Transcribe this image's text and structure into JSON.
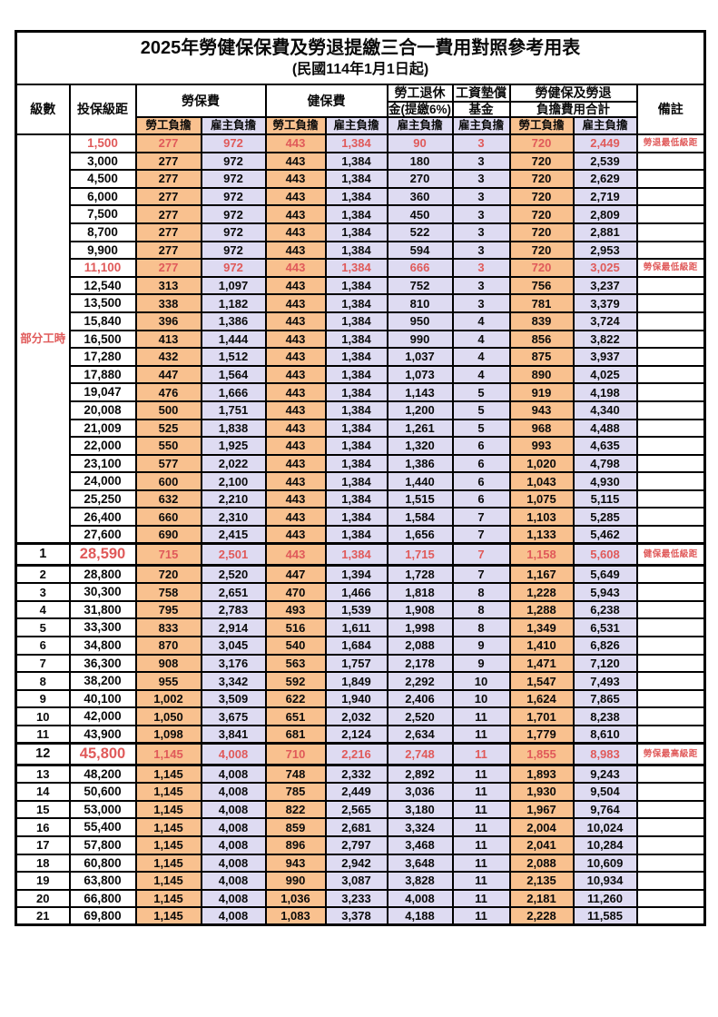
{
  "page": {
    "title": "2025年勞健保保費及勞退提繳三合一費用對照參考用表",
    "subtitle": "(民國114年1月1日起)"
  },
  "header": {
    "level": "級數",
    "bracket": "投保級距",
    "labor_insurance": "勞保費",
    "health_insurance": "健保費",
    "pension_line1": "勞工退休",
    "pension_line2": "金(提繳6%)",
    "wage_fund_line1": "工資墊償",
    "wage_fund_line2": "基金",
    "total_line1": "勞健保及勞退",
    "total_line2": "負擔費用合計",
    "remarks": "備註",
    "employee_burden": "勞工負擔",
    "employer_burden": "雇主負擔"
  },
  "part_time_label": "部分工時",
  "colors": {
    "employee_bg": "#F9C18F",
    "employer_bg": "#DEDBF2",
    "highlight_red": "#E05A5A"
  },
  "rows": [
    {
      "group": "part_time",
      "level": "",
      "bracket": "1,500",
      "li_emp": "277",
      "li_er": "972",
      "hi_emp": "443",
      "hi_er": "1,384",
      "pension": "90",
      "fund": "3",
      "tot_emp": "720",
      "tot_er": "2,449",
      "note": "勞退最低級距",
      "red": true
    },
    {
      "group": "part_time",
      "level": "",
      "bracket": "3,000",
      "li_emp": "277",
      "li_er": "972",
      "hi_emp": "443",
      "hi_er": "1,384",
      "pension": "180",
      "fund": "3",
      "tot_emp": "720",
      "tot_er": "2,539"
    },
    {
      "group": "part_time",
      "level": "",
      "bracket": "4,500",
      "li_emp": "277",
      "li_er": "972",
      "hi_emp": "443",
      "hi_er": "1,384",
      "pension": "270",
      "fund": "3",
      "tot_emp": "720",
      "tot_er": "2,629"
    },
    {
      "group": "part_time",
      "level": "",
      "bracket": "6,000",
      "li_emp": "277",
      "li_er": "972",
      "hi_emp": "443",
      "hi_er": "1,384",
      "pension": "360",
      "fund": "3",
      "tot_emp": "720",
      "tot_er": "2,719"
    },
    {
      "group": "part_time",
      "level": "",
      "bracket": "7,500",
      "li_emp": "277",
      "li_er": "972",
      "hi_emp": "443",
      "hi_er": "1,384",
      "pension": "450",
      "fund": "3",
      "tot_emp": "720",
      "tot_er": "2,809"
    },
    {
      "group": "part_time",
      "level": "",
      "bracket": "8,700",
      "li_emp": "277",
      "li_er": "972",
      "hi_emp": "443",
      "hi_er": "1,384",
      "pension": "522",
      "fund": "3",
      "tot_emp": "720",
      "tot_er": "2,881"
    },
    {
      "group": "part_time",
      "level": "",
      "bracket": "9,900",
      "li_emp": "277",
      "li_er": "972",
      "hi_emp": "443",
      "hi_er": "1,384",
      "pension": "594",
      "fund": "3",
      "tot_emp": "720",
      "tot_er": "2,953"
    },
    {
      "group": "part_time",
      "level": "",
      "bracket": "11,100",
      "li_emp": "277",
      "li_er": "972",
      "hi_emp": "443",
      "hi_er": "1,384",
      "pension": "666",
      "fund": "3",
      "tot_emp": "720",
      "tot_er": "3,025",
      "note": "勞保最低級距",
      "red": true
    },
    {
      "group": "part_time",
      "level": "",
      "bracket": "12,540",
      "li_emp": "313",
      "li_er": "1,097",
      "hi_emp": "443",
      "hi_er": "1,384",
      "pension": "752",
      "fund": "3",
      "tot_emp": "756",
      "tot_er": "3,237"
    },
    {
      "group": "part_time",
      "level": "",
      "bracket": "13,500",
      "li_emp": "338",
      "li_er": "1,182",
      "hi_emp": "443",
      "hi_er": "1,384",
      "pension": "810",
      "fund": "3",
      "tot_emp": "781",
      "tot_er": "3,379"
    },
    {
      "group": "part_time",
      "level": "",
      "bracket": "15,840",
      "li_emp": "396",
      "li_er": "1,386",
      "hi_emp": "443",
      "hi_er": "1,384",
      "pension": "950",
      "fund": "4",
      "tot_emp": "839",
      "tot_er": "3,724"
    },
    {
      "group": "part_time",
      "level": "",
      "bracket": "16,500",
      "li_emp": "413",
      "li_er": "1,444",
      "hi_emp": "443",
      "hi_er": "1,384",
      "pension": "990",
      "fund": "4",
      "tot_emp": "856",
      "tot_er": "3,822"
    },
    {
      "group": "part_time",
      "level": "",
      "bracket": "17,280",
      "li_emp": "432",
      "li_er": "1,512",
      "hi_emp": "443",
      "hi_er": "1,384",
      "pension": "1,037",
      "fund": "4",
      "tot_emp": "875",
      "tot_er": "3,937"
    },
    {
      "group": "part_time",
      "level": "",
      "bracket": "17,880",
      "li_emp": "447",
      "li_er": "1,564",
      "hi_emp": "443",
      "hi_er": "1,384",
      "pension": "1,073",
      "fund": "4",
      "tot_emp": "890",
      "tot_er": "4,025"
    },
    {
      "group": "part_time",
      "level": "",
      "bracket": "19,047",
      "li_emp": "476",
      "li_er": "1,666",
      "hi_emp": "443",
      "hi_er": "1,384",
      "pension": "1,143",
      "fund": "5",
      "tot_emp": "919",
      "tot_er": "4,198"
    },
    {
      "group": "part_time",
      "level": "",
      "bracket": "20,008",
      "li_emp": "500",
      "li_er": "1,751",
      "hi_emp": "443",
      "hi_er": "1,384",
      "pension": "1,200",
      "fund": "5",
      "tot_emp": "943",
      "tot_er": "4,340"
    },
    {
      "group": "part_time",
      "level": "",
      "bracket": "21,009",
      "li_emp": "525",
      "li_er": "1,838",
      "hi_emp": "443",
      "hi_er": "1,384",
      "pension": "1,261",
      "fund": "5",
      "tot_emp": "968",
      "tot_er": "4,488"
    },
    {
      "group": "part_time",
      "level": "",
      "bracket": "22,000",
      "li_emp": "550",
      "li_er": "1,925",
      "hi_emp": "443",
      "hi_er": "1,384",
      "pension": "1,320",
      "fund": "6",
      "tot_emp": "993",
      "tot_er": "4,635"
    },
    {
      "group": "part_time",
      "level": "",
      "bracket": "23,100",
      "li_emp": "577",
      "li_er": "2,022",
      "hi_emp": "443",
      "hi_er": "1,384",
      "pension": "1,386",
      "fund": "6",
      "tot_emp": "1,020",
      "tot_er": "4,798"
    },
    {
      "group": "part_time",
      "level": "",
      "bracket": "24,000",
      "li_emp": "600",
      "li_er": "2,100",
      "hi_emp": "443",
      "hi_er": "1,384",
      "pension": "1,440",
      "fund": "6",
      "tot_emp": "1,043",
      "tot_er": "4,930"
    },
    {
      "group": "part_time",
      "level": "",
      "bracket": "25,250",
      "li_emp": "632",
      "li_er": "2,210",
      "hi_emp": "443",
      "hi_er": "1,384",
      "pension": "1,515",
      "fund": "6",
      "tot_emp": "1,075",
      "tot_er": "5,115"
    },
    {
      "group": "part_time",
      "level": "",
      "bracket": "26,400",
      "li_emp": "660",
      "li_er": "2,310",
      "hi_emp": "443",
      "hi_er": "1,384",
      "pension": "1,584",
      "fund": "7",
      "tot_emp": "1,103",
      "tot_er": "5,285"
    },
    {
      "group": "part_time",
      "level": "",
      "bracket": "27,600",
      "li_emp": "690",
      "li_er": "2,415",
      "hi_emp": "443",
      "hi_er": "1,384",
      "pension": "1,656",
      "fund": "7",
      "tot_emp": "1,133",
      "tot_er": "5,462"
    },
    {
      "group": "level",
      "level": "1",
      "bracket": "28,590",
      "li_emp": "715",
      "li_er": "2,501",
      "hi_emp": "443",
      "hi_er": "1,384",
      "pension": "1,715",
      "fund": "7",
      "tot_emp": "1,158",
      "tot_er": "5,608",
      "note": "健保最低級距",
      "red": true,
      "big": true
    },
    {
      "group": "level",
      "level": "2",
      "bracket": "28,800",
      "li_emp": "720",
      "li_er": "2,520",
      "hi_emp": "447",
      "hi_er": "1,394",
      "pension": "1,728",
      "fund": "7",
      "tot_emp": "1,167",
      "tot_er": "5,649"
    },
    {
      "group": "level",
      "level": "3",
      "bracket": "30,300",
      "li_emp": "758",
      "li_er": "2,651",
      "hi_emp": "470",
      "hi_er": "1,466",
      "pension": "1,818",
      "fund": "8",
      "tot_emp": "1,228",
      "tot_er": "5,943"
    },
    {
      "group": "level",
      "level": "4",
      "bracket": "31,800",
      "li_emp": "795",
      "li_er": "2,783",
      "hi_emp": "493",
      "hi_er": "1,539",
      "pension": "1,908",
      "fund": "8",
      "tot_emp": "1,288",
      "tot_er": "6,238"
    },
    {
      "group": "level",
      "level": "5",
      "bracket": "33,300",
      "li_emp": "833",
      "li_er": "2,914",
      "hi_emp": "516",
      "hi_er": "1,611",
      "pension": "1,998",
      "fund": "8",
      "tot_emp": "1,349",
      "tot_er": "6,531"
    },
    {
      "group": "level",
      "level": "6",
      "bracket": "34,800",
      "li_emp": "870",
      "li_er": "3,045",
      "hi_emp": "540",
      "hi_er": "1,684",
      "pension": "2,088",
      "fund": "9",
      "tot_emp": "1,410",
      "tot_er": "6,826"
    },
    {
      "group": "level",
      "level": "7",
      "bracket": "36,300",
      "li_emp": "908",
      "li_er": "3,176",
      "hi_emp": "563",
      "hi_er": "1,757",
      "pension": "2,178",
      "fund": "9",
      "tot_emp": "1,471",
      "tot_er": "7,120"
    },
    {
      "group": "level",
      "level": "8",
      "bracket": "38,200",
      "li_emp": "955",
      "li_er": "3,342",
      "hi_emp": "592",
      "hi_er": "1,849",
      "pension": "2,292",
      "fund": "10",
      "tot_emp": "1,547",
      "tot_er": "7,493"
    },
    {
      "group": "level",
      "level": "9",
      "bracket": "40,100",
      "li_emp": "1,002",
      "li_er": "3,509",
      "hi_emp": "622",
      "hi_er": "1,940",
      "pension": "2,406",
      "fund": "10",
      "tot_emp": "1,624",
      "tot_er": "7,865"
    },
    {
      "group": "level",
      "level": "10",
      "bracket": "42,000",
      "li_emp": "1,050",
      "li_er": "3,675",
      "hi_emp": "651",
      "hi_er": "2,032",
      "pension": "2,520",
      "fund": "11",
      "tot_emp": "1,701",
      "tot_er": "8,238"
    },
    {
      "group": "level",
      "level": "11",
      "bracket": "43,900",
      "li_emp": "1,098",
      "li_er": "3,841",
      "hi_emp": "681",
      "hi_er": "2,124",
      "pension": "2,634",
      "fund": "11",
      "tot_emp": "1,779",
      "tot_er": "8,610"
    },
    {
      "group": "level",
      "level": "12",
      "bracket": "45,800",
      "li_emp": "1,145",
      "li_er": "4,008",
      "hi_emp": "710",
      "hi_er": "2,216",
      "pension": "2,748",
      "fund": "11",
      "tot_emp": "1,855",
      "tot_er": "8,983",
      "note": "勞保最高級距",
      "red": true,
      "big": true
    },
    {
      "group": "level",
      "level": "13",
      "bracket": "48,200",
      "li_emp": "1,145",
      "li_er": "4,008",
      "hi_emp": "748",
      "hi_er": "2,332",
      "pension": "2,892",
      "fund": "11",
      "tot_emp": "1,893",
      "tot_er": "9,243"
    },
    {
      "group": "level",
      "level": "14",
      "bracket": "50,600",
      "li_emp": "1,145",
      "li_er": "4,008",
      "hi_emp": "785",
      "hi_er": "2,449",
      "pension": "3,036",
      "fund": "11",
      "tot_emp": "1,930",
      "tot_er": "9,504"
    },
    {
      "group": "level",
      "level": "15",
      "bracket": "53,000",
      "li_emp": "1,145",
      "li_er": "4,008",
      "hi_emp": "822",
      "hi_er": "2,565",
      "pension": "3,180",
      "fund": "11",
      "tot_emp": "1,967",
      "tot_er": "9,764"
    },
    {
      "group": "level",
      "level": "16",
      "bracket": "55,400",
      "li_emp": "1,145",
      "li_er": "4,008",
      "hi_emp": "859",
      "hi_er": "2,681",
      "pension": "3,324",
      "fund": "11",
      "tot_emp": "2,004",
      "tot_er": "10,024"
    },
    {
      "group": "level",
      "level": "17",
      "bracket": "57,800",
      "li_emp": "1,145",
      "li_er": "4,008",
      "hi_emp": "896",
      "hi_er": "2,797",
      "pension": "3,468",
      "fund": "11",
      "tot_emp": "2,041",
      "tot_er": "10,284"
    },
    {
      "group": "level",
      "level": "18",
      "bracket": "60,800",
      "li_emp": "1,145",
      "li_er": "4,008",
      "hi_emp": "943",
      "hi_er": "2,942",
      "pension": "3,648",
      "fund": "11",
      "tot_emp": "2,088",
      "tot_er": "10,609"
    },
    {
      "group": "level",
      "level": "19",
      "bracket": "63,800",
      "li_emp": "1,145",
      "li_er": "4,008",
      "hi_emp": "990",
      "hi_er": "3,087",
      "pension": "3,828",
      "fund": "11",
      "tot_emp": "2,135",
      "tot_er": "10,934"
    },
    {
      "group": "level",
      "level": "20",
      "bracket": "66,800",
      "li_emp": "1,145",
      "li_er": "4,008",
      "hi_emp": "1,036",
      "hi_er": "3,233",
      "pension": "4,008",
      "fund": "11",
      "tot_emp": "2,181",
      "tot_er": "11,260"
    },
    {
      "group": "level",
      "level": "21",
      "bracket": "69,800",
      "li_emp": "1,145",
      "li_er": "4,008",
      "hi_emp": "1,083",
      "hi_er": "3,378",
      "pension": "4,188",
      "fund": "11",
      "tot_emp": "2,228",
      "tot_er": "11,585"
    }
  ]
}
